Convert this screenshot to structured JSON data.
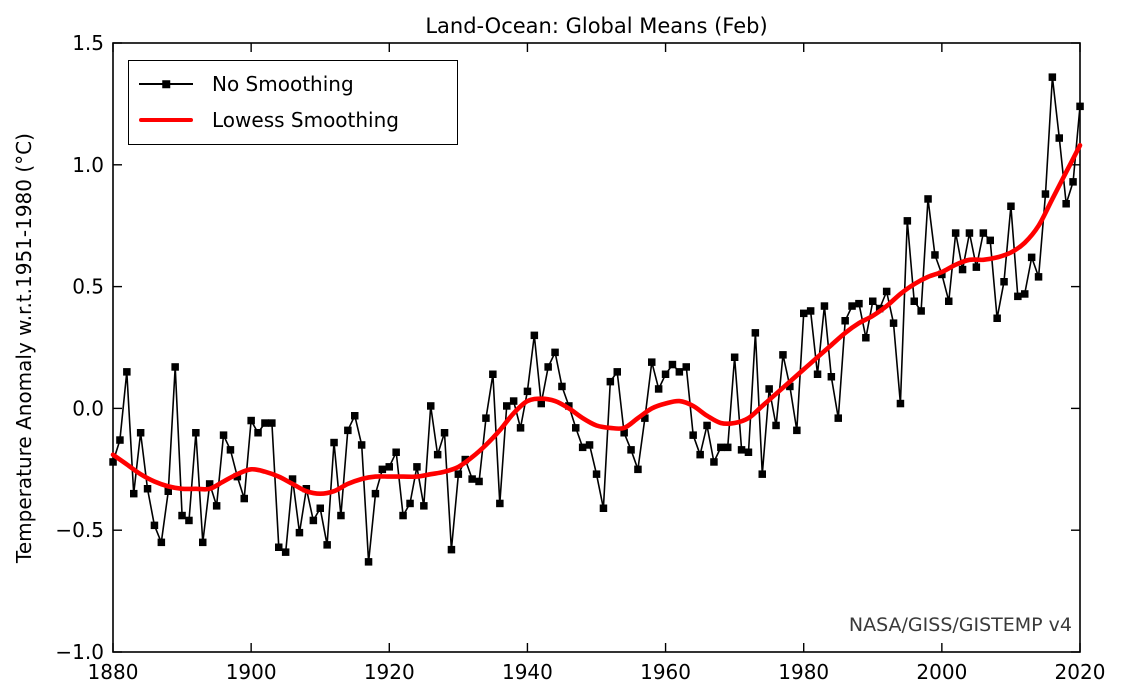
{
  "chart_data": {
    "type": "line",
    "title": "Land-Ocean: Global Means (Feb)",
    "ylabel": "Temperature Anomaly w.r.t.1951-1980 (°C)",
    "xlabel": "",
    "watermark": "NASA/GISS/GISTEMP v4",
    "xlim": [
      1880,
      2020
    ],
    "ylim": [
      -1.0,
      1.5
    ],
    "x_ticks": [
      1880,
      1900,
      1920,
      1940,
      1960,
      1980,
      2000,
      2020
    ],
    "x_tick_labels": [
      "1880",
      "1900",
      "1920",
      "1940",
      "1960",
      "1980",
      "2000",
      "2020"
    ],
    "y_ticks": [
      -1.0,
      -0.5,
      0.0,
      0.5,
      1.0,
      1.5
    ],
    "y_tick_labels": [
      "−1.0",
      "−0.5",
      "0.0",
      "0.5",
      "1.0",
      "1.5"
    ],
    "grid": false,
    "legend": {
      "position": "upper-left",
      "entries": [
        {
          "label": "No Smoothing",
          "style": "black-line-square-marker"
        },
        {
          "label": "Lowess Smoothing",
          "style": "red-thick-line"
        }
      ]
    },
    "colors": {
      "no_smoothing": "#000000",
      "lowess": "#ff0000",
      "watermark": "#3a3a3a",
      "axes": "#000000",
      "background": "#ffffff"
    },
    "series": [
      {
        "name": "No Smoothing",
        "draw": "line+marker",
        "marker": "square",
        "color": "#000000",
        "x_start": 1880,
        "x_step": 1,
        "values": [
          -0.22,
          -0.13,
          0.15,
          -0.35,
          -0.1,
          -0.33,
          -0.48,
          -0.55,
          -0.34,
          0.17,
          -0.44,
          -0.46,
          -0.1,
          -0.55,
          -0.31,
          -0.4,
          -0.11,
          -0.17,
          -0.28,
          -0.37,
          -0.05,
          -0.1,
          -0.06,
          -0.06,
          -0.57,
          -0.59,
          -0.29,
          -0.51,
          -0.33,
          -0.46,
          -0.41,
          -0.56,
          -0.14,
          -0.44,
          -0.09,
          -0.03,
          -0.15,
          -0.63,
          -0.35,
          -0.25,
          -0.24,
          -0.18,
          -0.44,
          -0.39,
          -0.24,
          -0.4,
          0.01,
          -0.19,
          -0.1,
          -0.58,
          -0.27,
          -0.21,
          -0.29,
          -0.3,
          -0.04,
          0.14,
          -0.39,
          0.01,
          0.03,
          -0.08,
          0.07,
          0.3,
          0.02,
          0.17,
          0.23,
          0.09,
          0.01,
          -0.08,
          -0.16,
          -0.15,
          -0.27,
          -0.41,
          0.11,
          0.15,
          -0.1,
          -0.17,
          -0.25,
          -0.04,
          0.19,
          0.08,
          0.14,
          0.18,
          0.15,
          0.17,
          -0.11,
          -0.19,
          -0.07,
          -0.22,
          -0.16,
          -0.16,
          0.21,
          -0.17,
          -0.18,
          0.31,
          -0.27,
          0.08,
          -0.07,
          0.22,
          0.09,
          -0.09,
          0.39,
          0.4,
          0.14,
          0.42,
          0.13,
          -0.04,
          0.36,
          0.42,
          0.43,
          0.29,
          0.44,
          0.41,
          0.48,
          0.35,
          0.02,
          0.77,
          0.44,
          0.4,
          0.86,
          0.63,
          0.55,
          0.44,
          0.72,
          0.57,
          0.72,
          0.58,
          0.72,
          0.69,
          0.37,
          0.52,
          0.83,
          0.46,
          0.47,
          0.62,
          0.54,
          0.88,
          1.36,
          1.11,
          0.84,
          0.93,
          1.24
        ]
      },
      {
        "name": "Lowess Smoothing",
        "draw": "smooth-line",
        "marker": "none",
        "color": "#ff0000",
        "x_start": 1880,
        "x_step": 2,
        "values": [
          -0.19,
          -0.23,
          -0.27,
          -0.3,
          -0.32,
          -0.33,
          -0.33,
          -0.33,
          -0.3,
          -0.27,
          -0.25,
          -0.26,
          -0.28,
          -0.31,
          -0.34,
          -0.35,
          -0.34,
          -0.31,
          -0.29,
          -0.28,
          -0.28,
          -0.28,
          -0.28,
          -0.27,
          -0.26,
          -0.24,
          -0.2,
          -0.15,
          -0.09,
          -0.02,
          0.03,
          0.04,
          0.03,
          0.0,
          -0.04,
          -0.07,
          -0.08,
          -0.08,
          -0.04,
          0.0,
          0.02,
          0.03,
          0.01,
          -0.03,
          -0.06,
          -0.06,
          -0.04,
          0.01,
          0.06,
          0.11,
          0.16,
          0.21,
          0.26,
          0.31,
          0.35,
          0.38,
          0.42,
          0.47,
          0.51,
          0.54,
          0.56,
          0.59,
          0.61,
          0.61,
          0.62,
          0.64,
          0.68,
          0.75,
          0.86,
          0.97,
          1.08
        ]
      }
    ]
  }
}
